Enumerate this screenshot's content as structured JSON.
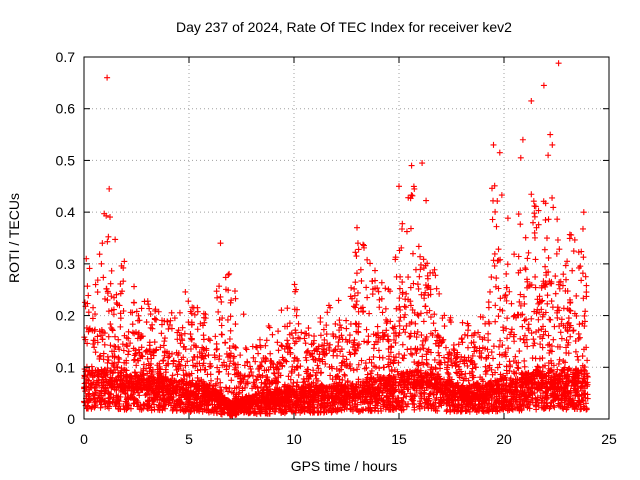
{
  "chart_data": {
    "type": "scatter",
    "title": "Day 237 of 2024, Rate Of TEC Index for receiver kev2",
    "xlabel": "GPS time / hours",
    "ylabel": "ROTI / TECUs",
    "xlim": [
      0,
      25
    ],
    "ylim": [
      0,
      0.7
    ],
    "xticks": [
      0,
      5,
      10,
      15,
      20,
      25
    ],
    "yticks": [
      0,
      0.1,
      0.2,
      0.3,
      0.4,
      0.5,
      0.6,
      0.7
    ],
    "grid": true,
    "marker": "plus",
    "color": "#ff0000",
    "x_span": [
      0,
      24
    ],
    "outliers": [
      {
        "x": 1.1,
        "y": 0.66
      },
      {
        "x": 21.3,
        "y": 0.615
      },
      {
        "x": 21.9,
        "y": 0.645
      },
      {
        "x": 22.6,
        "y": 0.688
      },
      {
        "x": 22.2,
        "y": 0.55
      },
      {
        "x": 22.3,
        "y": 0.53
      },
      {
        "x": 22.1,
        "y": 0.51
      },
      {
        "x": 19.5,
        "y": 0.53
      },
      {
        "x": 19.8,
        "y": 0.515
      },
      {
        "x": 20.9,
        "y": 0.54
      },
      {
        "x": 20.8,
        "y": 0.505
      },
      {
        "x": 16.1,
        "y": 0.495
      },
      {
        "x": 15.6,
        "y": 0.49
      },
      {
        "x": 15.0,
        "y": 0.45
      },
      {
        "x": 1.2,
        "y": 0.445
      },
      {
        "x": 13.0,
        "y": 0.37
      },
      {
        "x": 6.5,
        "y": 0.34
      },
      {
        "x": 23.8,
        "y": 0.4
      }
    ],
    "envelope": [
      {
        "x": 0.0,
        "y": 0.36
      },
      {
        "x": 0.5,
        "y": 0.28
      },
      {
        "x": 1.0,
        "y": 0.44
      },
      {
        "x": 1.5,
        "y": 0.35
      },
      {
        "x": 2.0,
        "y": 0.3
      },
      {
        "x": 2.5,
        "y": 0.25
      },
      {
        "x": 3.0,
        "y": 0.23
      },
      {
        "x": 3.5,
        "y": 0.21
      },
      {
        "x": 4.0,
        "y": 0.2
      },
      {
        "x": 4.5,
        "y": 0.24
      },
      {
        "x": 5.0,
        "y": 0.25
      },
      {
        "x": 5.5,
        "y": 0.21
      },
      {
        "x": 6.0,
        "y": 0.2
      },
      {
        "x": 6.5,
        "y": 0.33
      },
      {
        "x": 7.0,
        "y": 0.27
      },
      {
        "x": 7.5,
        "y": 0.22
      },
      {
        "x": 8.0,
        "y": 0.14
      },
      {
        "x": 8.5,
        "y": 0.16
      },
      {
        "x": 9.0,
        "y": 0.2
      },
      {
        "x": 9.5,
        "y": 0.22
      },
      {
        "x": 10.0,
        "y": 0.27
      },
      {
        "x": 10.5,
        "y": 0.19
      },
      {
        "x": 11.0,
        "y": 0.2
      },
      {
        "x": 11.5,
        "y": 0.22
      },
      {
        "x": 12.0,
        "y": 0.25
      },
      {
        "x": 12.5,
        "y": 0.23
      },
      {
        "x": 13.0,
        "y": 0.37
      },
      {
        "x": 13.5,
        "y": 0.33
      },
      {
        "x": 14.0,
        "y": 0.31
      },
      {
        "x": 14.5,
        "y": 0.28
      },
      {
        "x": 15.0,
        "y": 0.36
      },
      {
        "x": 15.5,
        "y": 0.44
      },
      {
        "x": 16.0,
        "y": 0.48
      },
      {
        "x": 16.5,
        "y": 0.4
      },
      {
        "x": 17.0,
        "y": 0.22
      },
      {
        "x": 17.5,
        "y": 0.2
      },
      {
        "x": 18.0,
        "y": 0.19
      },
      {
        "x": 18.5,
        "y": 0.18
      },
      {
        "x": 19.0,
        "y": 0.24
      },
      {
        "x": 19.5,
        "y": 0.5
      },
      {
        "x": 20.0,
        "y": 0.47
      },
      {
        "x": 20.5,
        "y": 0.38
      },
      {
        "x": 21.0,
        "y": 0.45
      },
      {
        "x": 21.5,
        "y": 0.43
      },
      {
        "x": 22.0,
        "y": 0.44
      },
      {
        "x": 22.5,
        "y": 0.42
      },
      {
        "x": 23.0,
        "y": 0.38
      },
      {
        "x": 23.5,
        "y": 0.37
      },
      {
        "x": 24.0,
        "y": 0.4
      }
    ],
    "baseline": [
      {
        "x": 0.0,
        "y": 0.06
      },
      {
        "x": 2.0,
        "y": 0.06
      },
      {
        "x": 4.0,
        "y": 0.05
      },
      {
        "x": 6.0,
        "y": 0.04
      },
      {
        "x": 7.0,
        "y": 0.02
      },
      {
        "x": 8.0,
        "y": 0.03
      },
      {
        "x": 10.0,
        "y": 0.04
      },
      {
        "x": 12.0,
        "y": 0.04
      },
      {
        "x": 14.0,
        "y": 0.05
      },
      {
        "x": 16.0,
        "y": 0.06
      },
      {
        "x": 18.0,
        "y": 0.04
      },
      {
        "x": 20.0,
        "y": 0.05
      },
      {
        "x": 22.0,
        "y": 0.06
      },
      {
        "x": 24.0,
        "y": 0.06
      }
    ]
  }
}
